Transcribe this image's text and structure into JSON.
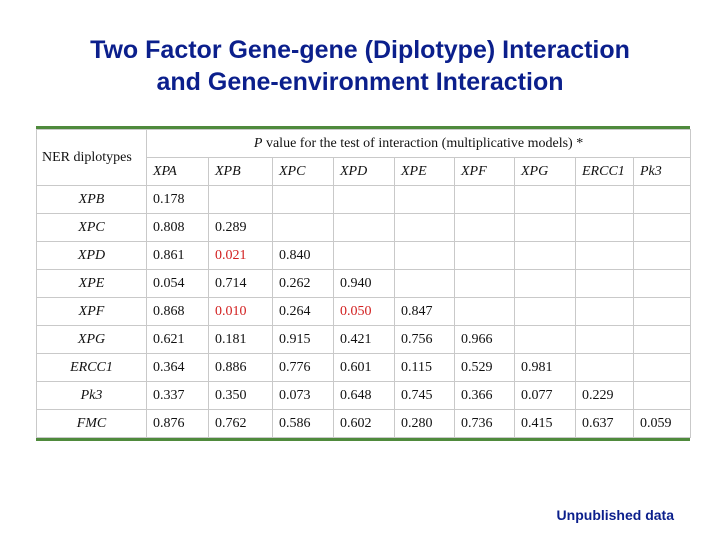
{
  "title": {
    "line1": "Two Factor Gene-gene (Diplotype) Interaction",
    "line2": "and Gene-environment Interaction"
  },
  "table": {
    "corner_header": "NER diplotypes",
    "caption_italic": "P",
    "caption_rest": " value for the test of interaction (multiplicative models) *",
    "columns": [
      "XPA",
      "XPB",
      "XPC",
      "XPD",
      "XPE",
      "XPF",
      "XPG",
      "ERCC1",
      "Pk3"
    ],
    "rows": [
      {
        "label": "XPB",
        "values": [
          "0.178",
          "",
          "",
          "",
          "",
          "",
          "",
          "",
          ""
        ]
      },
      {
        "label": "XPC",
        "values": [
          "0.808",
          "0.289",
          "",
          "",
          "",
          "",
          "",
          "",
          ""
        ]
      },
      {
        "label": "XPD",
        "values": [
          "0.861",
          "0.021",
          "0.840",
          "",
          "",
          "",
          "",
          "",
          ""
        ]
      },
      {
        "label": "XPE",
        "values": [
          "0.054",
          "0.714",
          "0.262",
          "0.940",
          "",
          "",
          "",
          "",
          ""
        ]
      },
      {
        "label": "XPF",
        "values": [
          "0.868",
          "0.010",
          "0.264",
          "0.050",
          "0.847",
          "",
          "",
          "",
          ""
        ]
      },
      {
        "label": "XPG",
        "values": [
          "0.621",
          "0.181",
          "0.915",
          "0.421",
          "0.756",
          "0.966",
          "",
          "",
          ""
        ]
      },
      {
        "label": "ERCC1",
        "values": [
          "0.364",
          "0.886",
          "0.776",
          "0.601",
          "0.115",
          "0.529",
          "0.981",
          "",
          ""
        ]
      },
      {
        "label": "Pk3",
        "values": [
          "0.337",
          "0.350",
          "0.073",
          "0.648",
          "0.745",
          "0.366",
          "0.077",
          "0.229",
          ""
        ]
      },
      {
        "label": "FMC",
        "values": [
          "0.876",
          "0.762",
          "0.586",
          "0.602",
          "0.280",
          "0.736",
          "0.415",
          "0.637",
          "0.059"
        ]
      }
    ],
    "significant_color": "#d21f1f",
    "significant_cells": [
      [
        2,
        1
      ],
      [
        4,
        1
      ],
      [
        4,
        3
      ]
    ]
  },
  "footnote": "Unpublished data",
  "colors": {
    "title": "#0b1f8c",
    "table_rule": "#4f8a3c",
    "grid": "#c9c9c9"
  }
}
